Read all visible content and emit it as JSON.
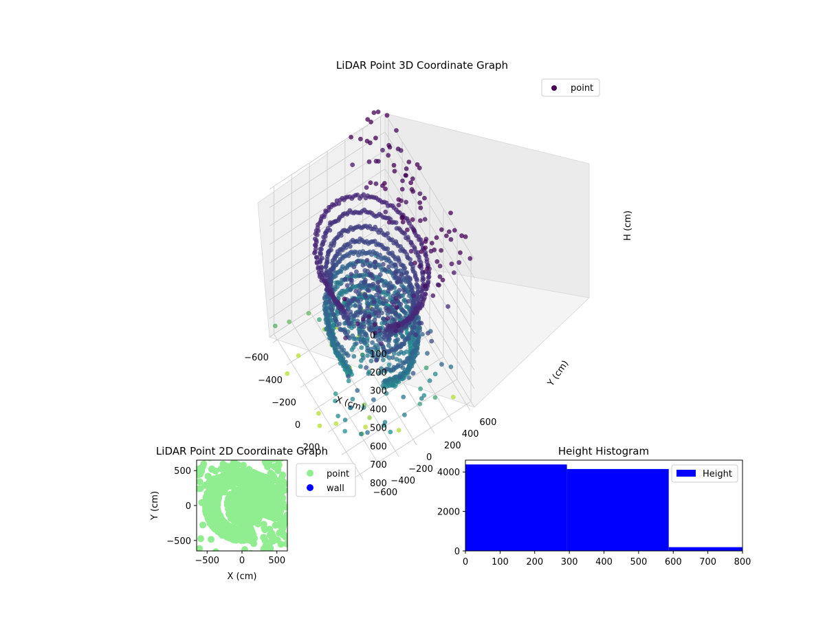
{
  "colors": {
    "point_2d": "#90ee90",
    "wall": "#0000ff",
    "histogram": "#0000ff",
    "legend_point_3d": "#440154"
  },
  "chart_data": [
    {
      "type": "scatter",
      "title": "LiDAR Point 3D Coordinate Graph",
      "xlabel": "X (cm)",
      "ylabel": "Y (cm)",
      "zlabel": "H (cm)",
      "x_ticks": [
        -600,
        -400,
        -200,
        0,
        200,
        400,
        600
      ],
      "y_ticks": [
        -600,
        -400,
        -200,
        0,
        200,
        400,
        600
      ],
      "z_ticks": [
        0,
        100,
        200,
        300,
        400,
        500,
        600,
        700,
        800
      ],
      "xlim": [
        -650,
        650
      ],
      "ylim": [
        -650,
        650
      ],
      "zlim": [
        0,
        800
      ],
      "z_inverted": true,
      "colormap": "viridis",
      "legend": [
        "point"
      ],
      "legend_position": "top-right",
      "grid": true
    },
    {
      "type": "scatter",
      "title": "LiDAR Point 2D Coordinate Graph",
      "xlabel": "X (cm)",
      "ylabel": "Y (cm)",
      "x_ticks": [
        -500,
        0,
        500
      ],
      "y_ticks": [
        -500,
        0,
        500
      ],
      "xlim": [
        -650,
        650
      ],
      "ylim": [
        -650,
        650
      ],
      "legend": [
        "point",
        "wall"
      ],
      "legend_position": "outside-right",
      "grid": false
    },
    {
      "type": "bar",
      "title": "Height Histogram",
      "x_ticks": [
        0,
        100,
        200,
        300,
        400,
        500,
        600,
        700,
        800
      ],
      "y_ticks": [
        0,
        2000,
        4000
      ],
      "xlim": [
        0,
        800
      ],
      "ylim": [
        0,
        4600
      ],
      "bins": [
        {
          "start": 0,
          "end": 293,
          "value": 4380
        },
        {
          "start": 293,
          "end": 587,
          "value": 4150
        },
        {
          "start": 587,
          "end": 800,
          "value": 190
        }
      ],
      "legend": [
        "Height"
      ],
      "legend_position": "top-right",
      "grid": false
    }
  ]
}
